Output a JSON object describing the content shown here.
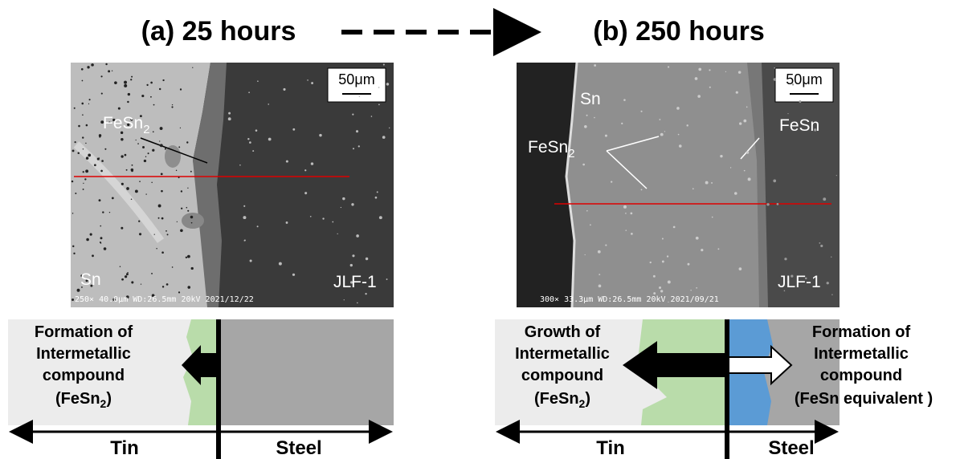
{
  "titles": {
    "a": "(a) 25 hours",
    "b": "(b) 250 hours"
  },
  "panel_a": {
    "image": {
      "scale": "50μm",
      "fesn2": {
        "main": "FeSn",
        "sub": "2"
      },
      "sn": "Sn",
      "sample": "JLF-1",
      "info": "250× 40.0μm WD:26.5mm 20kV 2021/12/22"
    },
    "schematic": {
      "label": [
        "Formation of",
        "Intermetallic",
        "compound",
        {
          "main": "(FeSn",
          "sub": "2",
          "tail": ")"
        }
      ],
      "left": "Tin",
      "right": "Steel"
    }
  },
  "panel_b": {
    "image": {
      "scale": "50μm",
      "sn": "Sn",
      "fesn2": {
        "main": "FeSn",
        "sub": "2"
      },
      "fesn": "FeSn",
      "sample": "JLF-1",
      "info": "300× 33.3μm WD:26.5mm 20kV 2021/09/21"
    },
    "schematic": {
      "left_label": [
        "Growth of",
        "Intermetallic",
        "compound",
        {
          "main": "(FeSn",
          "sub": "2",
          "tail": ")"
        }
      ],
      "right_label": [
        "Formation of",
        "Intermetallic",
        "compound",
        "(FeSn equivalent )"
      ],
      "left": "Tin",
      "right": "Steel"
    }
  }
}
